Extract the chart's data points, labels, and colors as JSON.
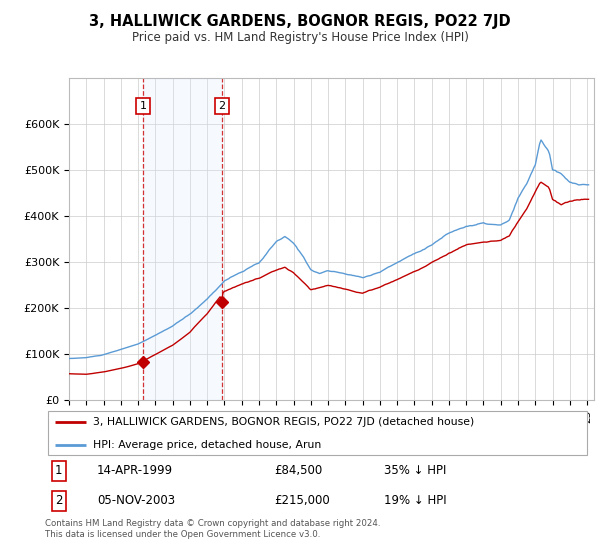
{
  "title": "3, HALLIWICK GARDENS, BOGNOR REGIS, PO22 7JD",
  "subtitle": "Price paid vs. HM Land Registry's House Price Index (HPI)",
  "background_color": "#ffffff",
  "grid_color": "#cccccc",
  "hpi_color": "#5b9bd5",
  "price_color": "#c00000",
  "shade_color": "#ddeeff",
  "purchase1_date_label": "14-APR-1999",
  "purchase1_price_label": "£84,500",
  "purchase1_hpi_label": "35% ↓ HPI",
  "purchase1_year": 1999.29,
  "purchase1_price": 84500,
  "purchase2_date_label": "05-NOV-2003",
  "purchase2_price_label": "£215,000",
  "purchase2_hpi_label": "19% ↓ HPI",
  "purchase2_year": 2003.84,
  "purchase2_price": 215000,
  "ylim": [
    0,
    700000
  ],
  "yticks": [
    0,
    100000,
    200000,
    300000,
    400000,
    500000,
    600000
  ],
  "ytick_labels": [
    "£0",
    "£100K",
    "£200K",
    "£300K",
    "£400K",
    "£500K",
    "£600K"
  ],
  "legend_label_price": "3, HALLIWICK GARDENS, BOGNOR REGIS, PO22 7JD (detached house)",
  "legend_label_hpi": "HPI: Average price, detached house, Arun",
  "footer": "Contains HM Land Registry data © Crown copyright and database right 2024.\nThis data is licensed under the Open Government Licence v3.0."
}
